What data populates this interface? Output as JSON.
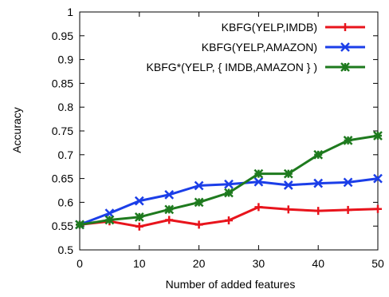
{
  "chart_data": {
    "type": "line",
    "title": "",
    "xlabel": "Number of added features",
    "ylabel": "Accuracy",
    "xlim": [
      0,
      50
    ],
    "ylim": [
      0.5,
      1
    ],
    "x": [
      0,
      5,
      10,
      15,
      20,
      25,
      30,
      35,
      40,
      45,
      50
    ],
    "xticks": [
      "0",
      "10",
      "20",
      "30",
      "40",
      "50"
    ],
    "yticks": [
      "0.5",
      "0.55",
      "0.6",
      "0.65",
      "0.7",
      "0.75",
      "0.8",
      "0.85",
      "0.9",
      "0.95",
      "1"
    ],
    "legend_position": "top-right",
    "grid": false,
    "series": [
      {
        "name": "KBFG(YELP,IMDB)",
        "color": "#e8141c",
        "marker": "plus",
        "values": [
          0.553,
          0.56,
          0.549,
          0.563,
          0.553,
          0.562,
          0.59,
          0.585,
          0.582,
          0.584,
          0.586
        ]
      },
      {
        "name": "KBFG(YELP,AMAZON)",
        "color": "#1b3ee8",
        "marker": "cross",
        "values": [
          0.553,
          0.577,
          0.603,
          0.616,
          0.635,
          0.638,
          0.643,
          0.636,
          0.64,
          0.642,
          0.65
        ]
      },
      {
        "name": "KBFG*(YELP, { IMDB,AMAZON } )",
        "color": "#1e7a1e",
        "marker": "star",
        "values": [
          0.553,
          0.563,
          0.569,
          0.585,
          0.6,
          0.62,
          0.66,
          0.66,
          0.7,
          0.73,
          0.74
        ]
      }
    ]
  }
}
